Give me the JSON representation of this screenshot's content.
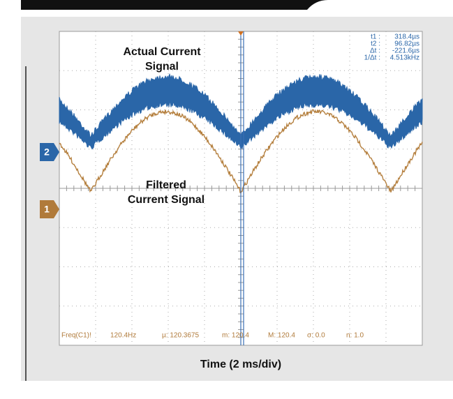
{
  "labels": {
    "actual": [
      "Actual Current",
      "Signal"
    ],
    "filtered": [
      "Filtered",
      "Current Signal"
    ],
    "channel_2": "2",
    "channel_1": "1",
    "x_axis": "Time (2 ms/div)"
  },
  "readout": [
    {
      "label": "t1 :",
      "value": "318.4µs"
    },
    {
      "label": "t2 :",
      "value": "96.82µs"
    },
    {
      "label": "Δt :",
      "value": "-221.6µs"
    },
    {
      "label": "1/Δt :",
      "value": "4.513kHz"
    }
  ],
  "measurements": [
    "Freq(C1)!",
    "120.4Hz",
    "µ: 120.3675",
    "m: 120.4",
    "M: 120.4",
    "σ: 0.0",
    "n: 1.0"
  ]
}
